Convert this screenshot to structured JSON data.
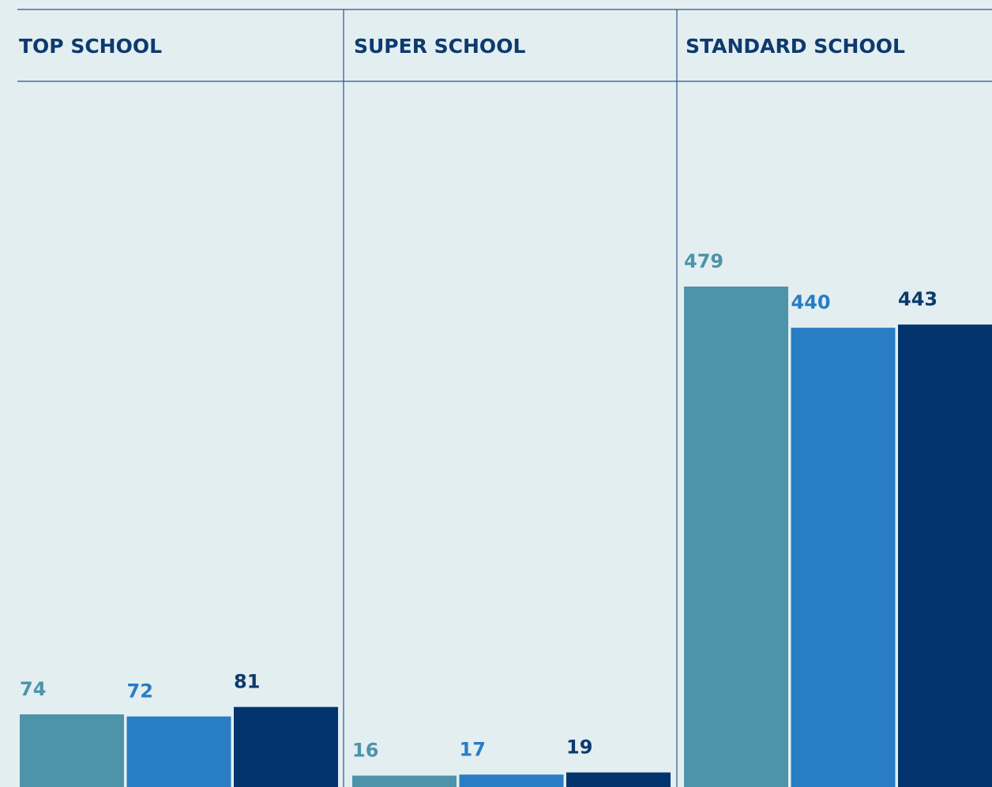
{
  "chart_data": {
    "type": "bar",
    "categories": [
      "TOP SCHOOL",
      "SUPER SCHOOL",
      "STANDARD SCHOOL"
    ],
    "series": [
      {
        "color": "#4d93a9",
        "values": [
          74,
          16,
          479
        ]
      },
      {
        "color": "#287dc4",
        "values": [
          72,
          17,
          440
        ]
      },
      {
        "color": "#03346d",
        "values": [
          81,
          19,
          443
        ]
      }
    ]
  }
}
